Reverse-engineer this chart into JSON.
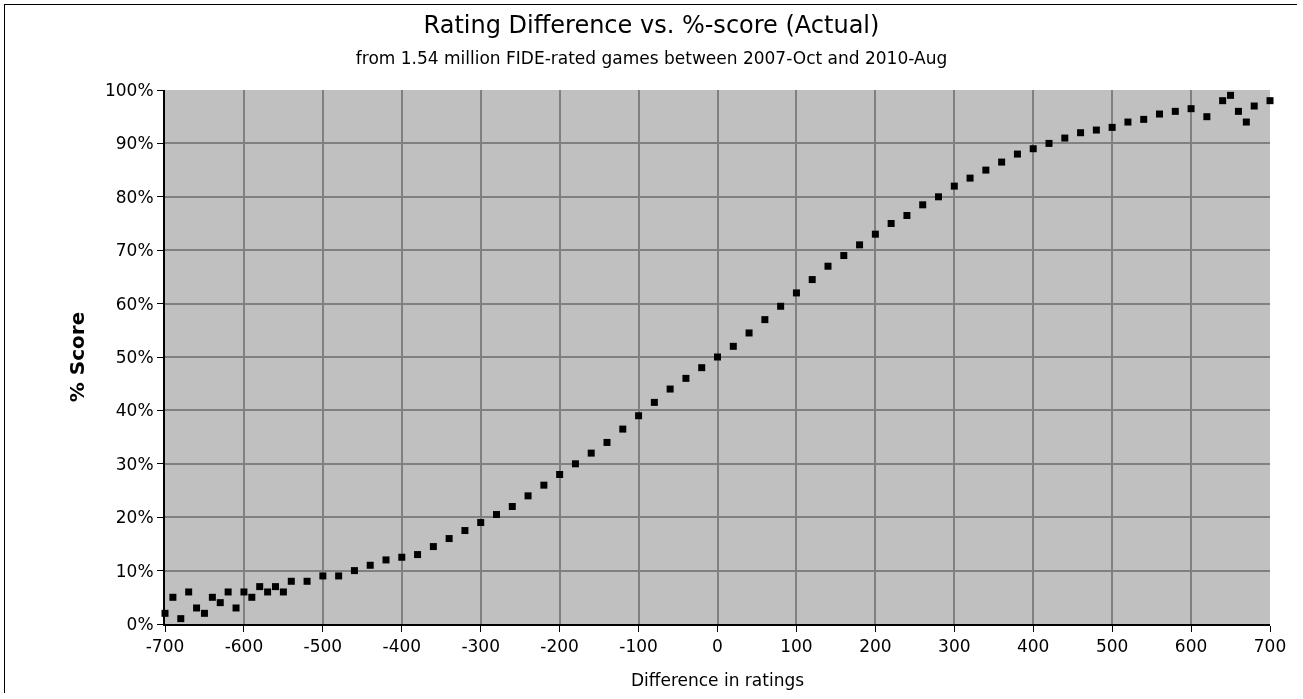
{
  "chart_data": {
    "type": "scatter",
    "title": "Rating Difference vs. %-score (Actual)",
    "subtitle": "from 1.54 million FIDE-rated games between 2007-Oct and 2010-Aug",
    "xlabel": "Difference in ratings",
    "ylabel": "% Score",
    "x": [
      -700,
      -690,
      -680,
      -670,
      -660,
      -650,
      -640,
      -630,
      -620,
      -610,
      -600,
      -590,
      -580,
      -570,
      -560,
      -550,
      -540,
      -520,
      -500,
      -480,
      -460,
      -440,
      -420,
      -400,
      -380,
      -360,
      -340,
      -320,
      -300,
      -280,
      -260,
      -240,
      -220,
      -200,
      -180,
      -160,
      -140,
      -120,
      -100,
      -80,
      -60,
      -40,
      -20,
      0,
      20,
      40,
      60,
      80,
      100,
      120,
      140,
      160,
      180,
      200,
      220,
      240,
      260,
      280,
      300,
      320,
      340,
      360,
      380,
      400,
      420,
      440,
      460,
      480,
      500,
      520,
      540,
      560,
      580,
      600,
      620,
      640,
      650,
      660,
      670,
      680,
      700
    ],
    "series": [
      {
        "color": "#000000",
        "values": [
          2,
          5,
          1,
          6,
          3,
          2,
          5,
          4,
          6,
          3,
          6,
          5,
          7,
          6,
          7,
          6,
          8,
          8,
          9,
          9,
          10,
          11,
          12,
          12.5,
          13,
          14.5,
          16,
          17.5,
          19,
          20.5,
          22,
          24,
          26,
          28,
          30,
          32,
          34,
          36.5,
          39,
          41.5,
          44,
          46,
          48,
          50,
          52,
          54.5,
          57,
          59.5,
          62,
          64.5,
          67,
          69,
          71,
          73,
          75,
          76.5,
          78.5,
          80,
          82,
          83.5,
          85,
          86.5,
          88,
          89,
          90,
          91,
          92,
          92.5,
          93,
          94,
          94.5,
          95.5,
          96,
          96.5,
          95,
          98,
          99,
          96,
          94,
          97,
          98
        ]
      }
    ],
    "xlim": [
      -700,
      700
    ],
    "xticks": [
      -700,
      -600,
      -500,
      -400,
      -300,
      -200,
      -100,
      0,
      100,
      200,
      300,
      400,
      500,
      600,
      700
    ],
    "ylim": [
      0,
      100
    ],
    "yticks": [
      {
        "value": 0,
        "label": "0%"
      },
      {
        "value": 10,
        "label": "10%"
      },
      {
        "value": 20,
        "label": "20%"
      },
      {
        "value": 30,
        "label": "30%"
      },
      {
        "value": 40,
        "label": "40%"
      },
      {
        "value": 50,
        "label": "50%"
      },
      {
        "value": 60,
        "label": "60%"
      },
      {
        "value": 70,
        "label": "70%"
      },
      {
        "value": 80,
        "label": "80%"
      },
      {
        "value": 90,
        "label": "90%"
      },
      {
        "value": 100,
        "label": "100%"
      }
    ],
    "grid": true,
    "marker": "square"
  }
}
